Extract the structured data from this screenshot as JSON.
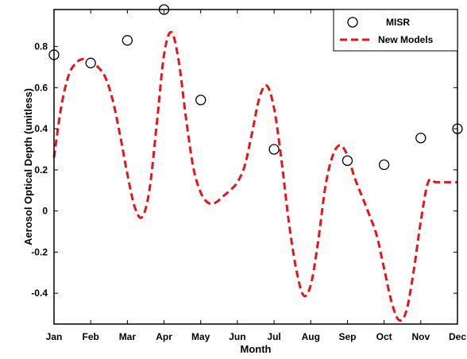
{
  "chart_data": {
    "type": "line",
    "xlabel": "Month",
    "ylabel": "Aerosol Optical Depth (unitless)",
    "categories": [
      "Jan",
      "Feb",
      "Mar",
      "Apr",
      "May",
      "Jun",
      "Jul",
      "Aug",
      "Sep",
      "Oct",
      "Nov",
      "Dec"
    ],
    "xlim": [
      1,
      12
    ],
    "ylim": [
      -0.55,
      0.98
    ],
    "yticks": [
      -0.4,
      -0.2,
      0,
      0.2,
      0.4,
      0.6,
      0.8
    ],
    "ytick_labels": [
      "-0.4",
      "-0.2",
      "0",
      "0.2",
      "0.4",
      "0.6",
      "0.8"
    ],
    "legend_position": "top-right",
    "series": [
      {
        "name": "MISR",
        "style": "open-circle-markers",
        "color": "#000000",
        "x": [
          1,
          2,
          3,
          4,
          5,
          7,
          9,
          10,
          11,
          12
        ],
        "values": [
          0.76,
          0.72,
          0.83,
          0.98,
          0.54,
          0.3,
          0.245,
          0.225,
          0.355,
          0.4
        ]
      },
      {
        "name": "New Models",
        "style": "dashed-line",
        "color": "#e8141b",
        "x": [
          1,
          1.2,
          1.4,
          1.6,
          1.8,
          2,
          2.2,
          2.4,
          2.6,
          2.8,
          3,
          3.2,
          3.4,
          3.6,
          3.8,
          4,
          4.2,
          4.4,
          4.6,
          4.8,
          5,
          5.2,
          5.4,
          5.6,
          5.8,
          6,
          6.2,
          6.4,
          6.6,
          6.8,
          7,
          7.2,
          7.4,
          7.6,
          7.8,
          8,
          8.2,
          8.4,
          8.6,
          8.8,
          9,
          9.2,
          9.4,
          9.6,
          9.8,
          10,
          10.2,
          10.4,
          10.6,
          10.8,
          11,
          11.2,
          11.4,
          11.6,
          11.8,
          12
        ],
        "values": [
          0.26,
          0.51,
          0.66,
          0.72,
          0.74,
          0.73,
          0.7,
          0.65,
          0.54,
          0.37,
          0.18,
          0.02,
          -0.03,
          0.1,
          0.42,
          0.76,
          0.87,
          0.73,
          0.45,
          0.21,
          0.09,
          0.04,
          0.04,
          0.07,
          0.1,
          0.14,
          0.22,
          0.38,
          0.55,
          0.61,
          0.5,
          0.25,
          -0.05,
          -0.28,
          -0.41,
          -0.36,
          -0.15,
          0.12,
          0.27,
          0.32,
          0.27,
          0.16,
          0.07,
          -0.02,
          -0.12,
          -0.28,
          -0.44,
          -0.53,
          -0.49,
          -0.3,
          -0.05,
          0.14,
          0.14,
          0.14,
          0.14,
          0.14
        ]
      }
    ]
  }
}
